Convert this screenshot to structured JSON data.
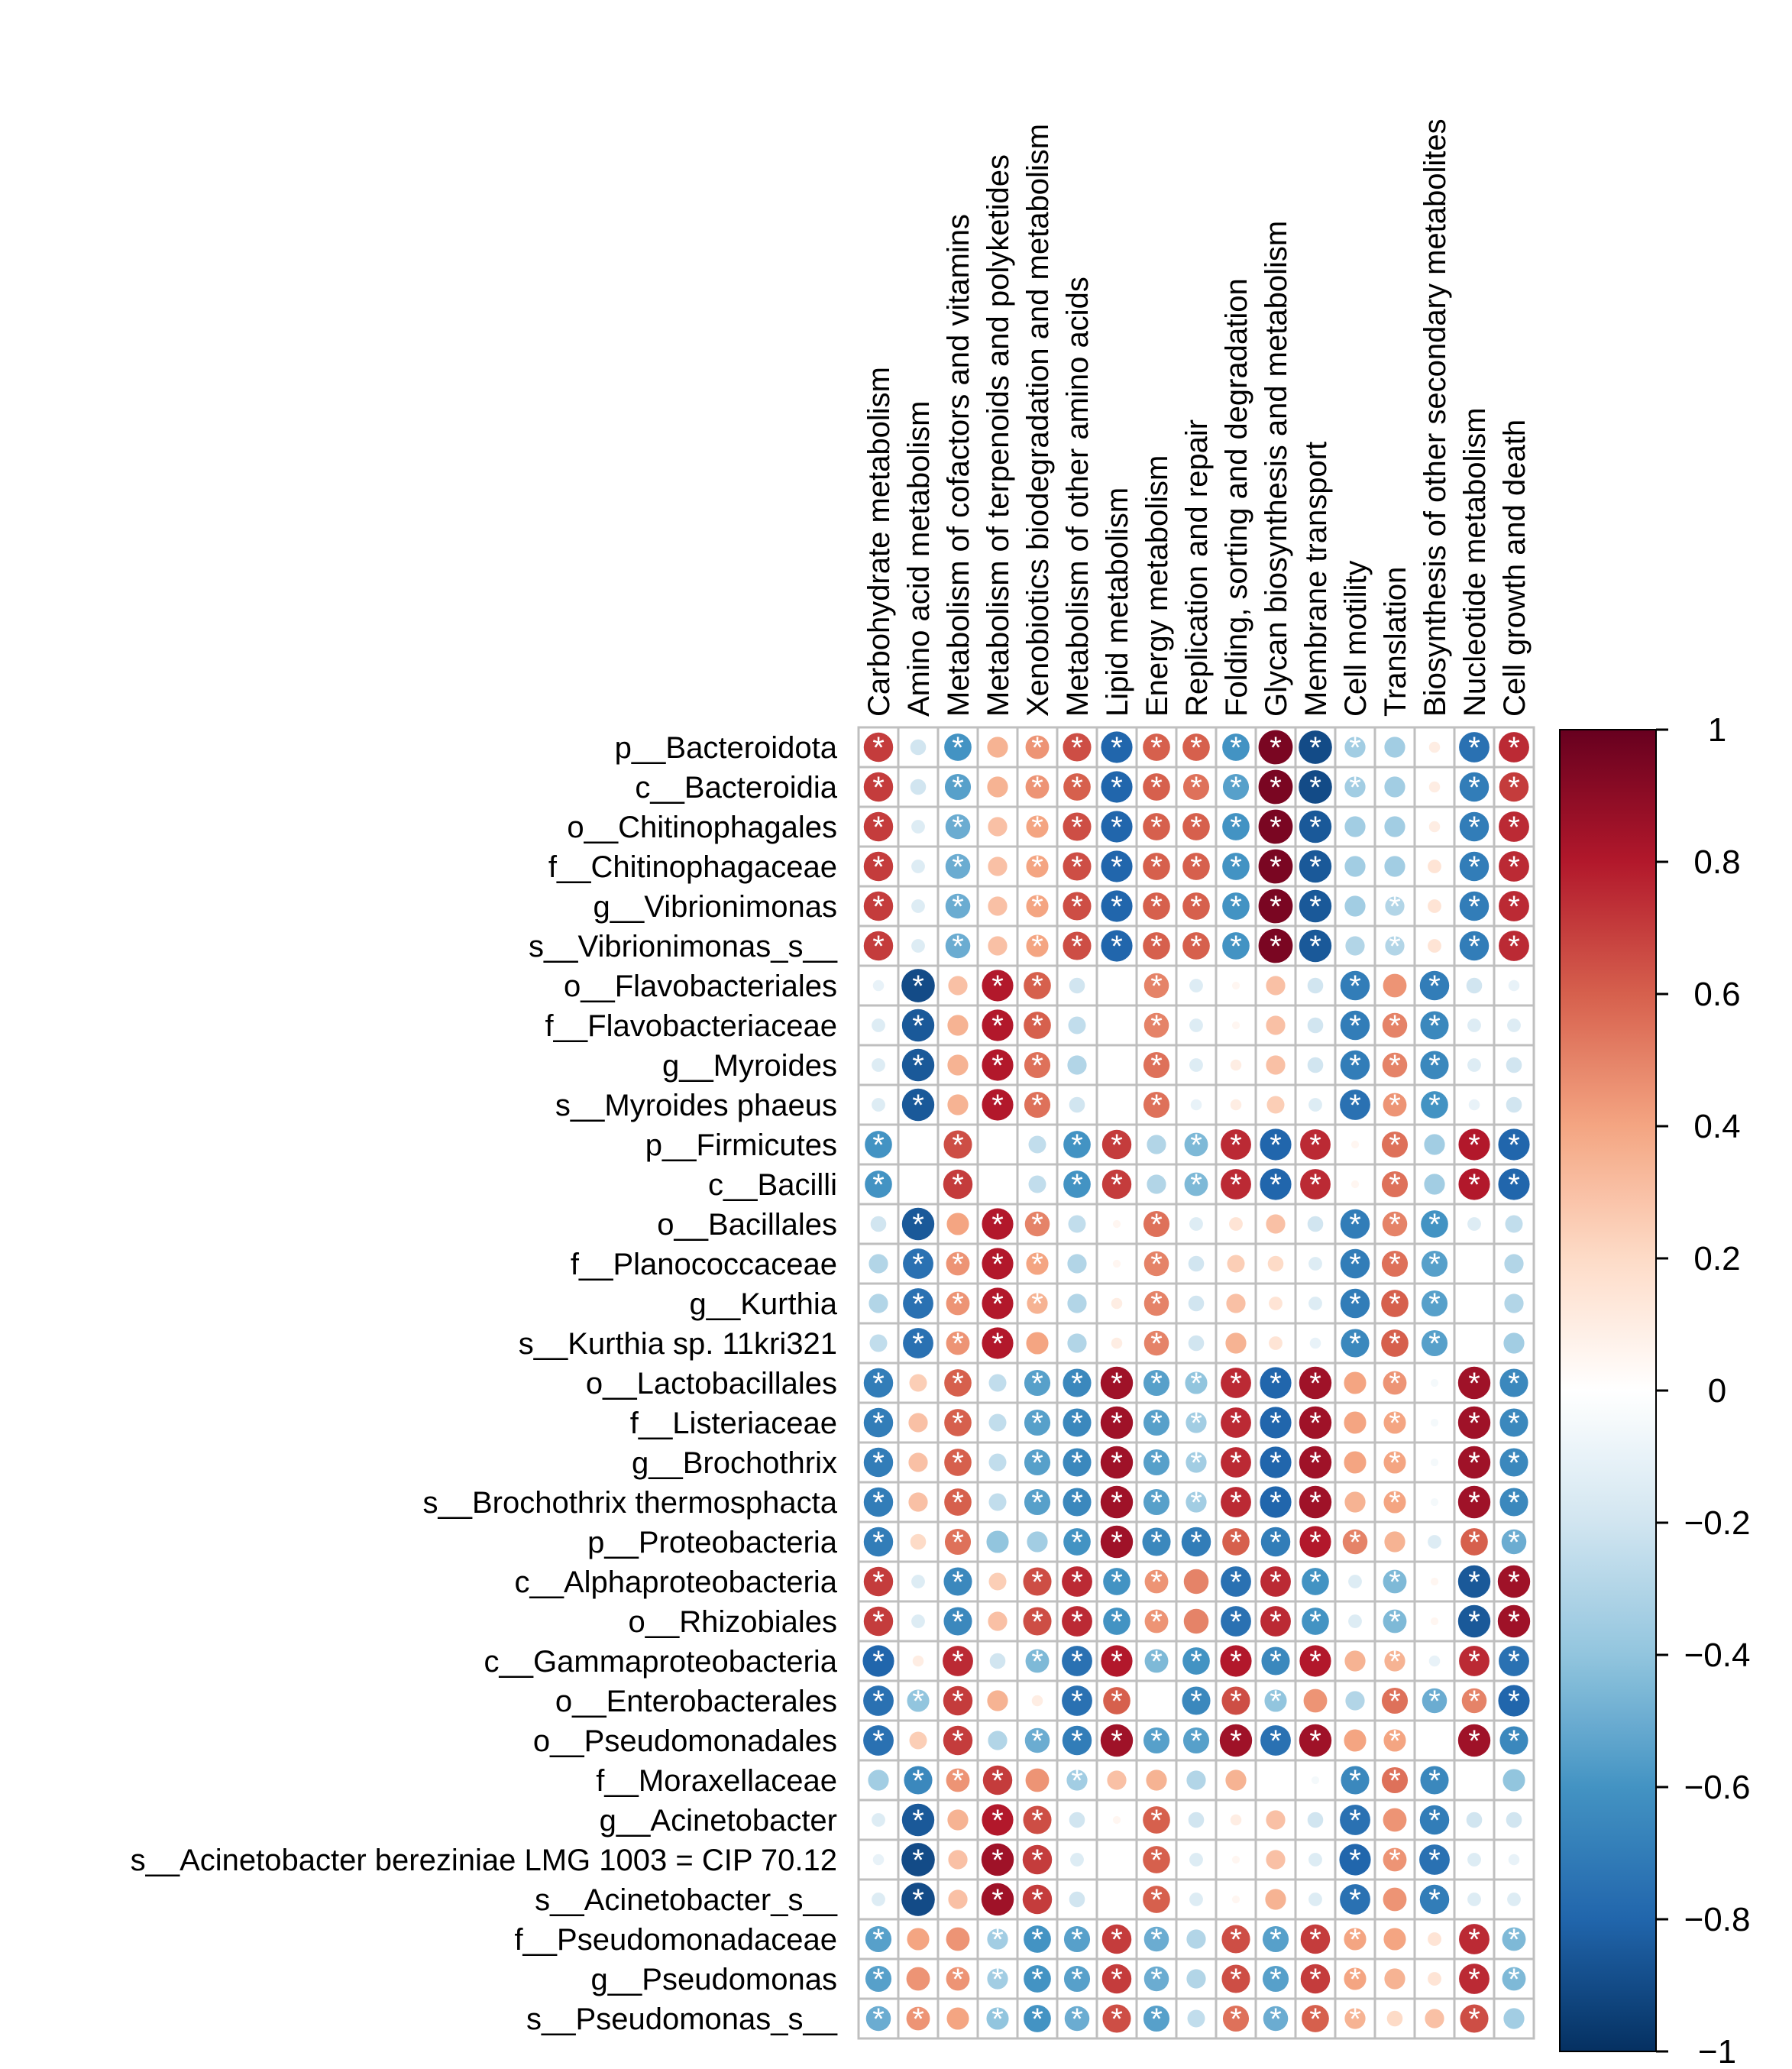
{
  "chart_data": {
    "type": "heatmap",
    "style": "corrplot-circle",
    "title": "",
    "significance_marker": "*",
    "columns": [
      "Carbohydrate metabolism",
      "Amino acid metabolism",
      "Metabolism of cofactors and vitamins",
      "Metabolism of terpenoids and polyketides",
      "Xenobiotics biodegradation and metabolism",
      "Metabolism of other amino acids",
      "Lipid metabolism",
      "Energy metabolism",
      "Replication and repair",
      "Folding, sorting and degradation",
      "Glycan biosynthesis and metabolism",
      "Membrane transport",
      "Cell motility",
      "Translation",
      "Biosynthesis of other secondary metabolites",
      "Nucleotide metabolism",
      "Cell growth and death"
    ],
    "rows": [
      "p__Bacteroidota",
      "c__Bacteroidia",
      "o__Chitinophagales",
      "f__Chitinophagaceae",
      "g__Vibrionimonas",
      "s__Vibrionimonas_s__",
      "o__Flavobacteriales",
      "f__Flavobacteriaceae",
      "g__Myroides",
      "s__Myroides phaeus",
      "p__Firmicutes",
      "c__Bacilli",
      "o__Bacillales",
      "f__Planococcaceae",
      "g__Kurthia",
      "s__Kurthia sp. 11kri321",
      "o__Lactobacillales",
      "f__Listeriaceae",
      "g__Brochothrix",
      "s__Brochothrix thermosphacta",
      "p__Proteobacteria",
      "c__Alphaproteobacteria",
      "o__Rhizobiales",
      "c__Gammaproteobacteria",
      "o__Enterobacterales",
      "o__Pseudomonadales",
      "f__Moraxellaceae",
      "g__Acinetobacter",
      "s__Acinetobacter bereziniae LMG 1003 = CIP 70.12",
      "s__Acinetobacter_s__",
      "f__Pseudomonadaceae",
      "g__Pseudomonas",
      "s__Pseudomonas_s__"
    ],
    "values": [
      [
        0.7,
        -0.2,
        -0.6,
        0.35,
        0.45,
        0.65,
        -0.8,
        0.6,
        0.6,
        -0.6,
        0.95,
        -0.9,
        -0.35,
        -0.35,
        0.1,
        -0.75,
        0.75
      ],
      [
        0.7,
        -0.2,
        -0.55,
        0.35,
        0.45,
        0.6,
        -0.8,
        0.6,
        0.55,
        -0.55,
        0.95,
        -0.9,
        -0.35,
        -0.35,
        0.1,
        -0.7,
        0.7
      ],
      [
        0.7,
        -0.15,
        -0.5,
        0.3,
        0.4,
        0.65,
        -0.8,
        0.6,
        0.6,
        -0.6,
        0.95,
        -0.85,
        -0.35,
        -0.35,
        0.1,
        -0.7,
        0.75
      ],
      [
        0.7,
        -0.15,
        -0.5,
        0.3,
        0.4,
        0.65,
        -0.8,
        0.6,
        0.6,
        -0.6,
        0.95,
        -0.85,
        -0.35,
        -0.35,
        0.15,
        -0.7,
        0.75
      ],
      [
        0.7,
        -0.15,
        -0.5,
        0.3,
        0.4,
        0.65,
        -0.8,
        0.6,
        0.6,
        -0.6,
        0.95,
        -0.85,
        -0.35,
        -0.3,
        0.15,
        -0.7,
        0.75
      ],
      [
        0.7,
        -0.15,
        -0.5,
        0.3,
        0.4,
        0.65,
        -0.8,
        0.6,
        0.6,
        -0.6,
        0.95,
        -0.85,
        -0.3,
        -0.3,
        0.15,
        -0.7,
        0.75
      ],
      [
        -0.1,
        -0.9,
        0.3,
        0.8,
        0.6,
        -0.2,
        0.0,
        0.5,
        -0.15,
        0.05,
        0.3,
        -0.2,
        -0.7,
        0.45,
        -0.7,
        -0.2,
        -0.1
      ],
      [
        -0.15,
        -0.85,
        0.35,
        0.8,
        0.6,
        -0.25,
        0.0,
        0.5,
        -0.15,
        0.05,
        0.3,
        -0.2,
        -0.7,
        0.5,
        -0.65,
        -0.15,
        -0.15
      ],
      [
        -0.15,
        -0.85,
        0.35,
        0.8,
        0.55,
        -0.3,
        0.0,
        0.55,
        -0.15,
        0.1,
        0.3,
        -0.2,
        -0.7,
        0.5,
        -0.65,
        -0.15,
        -0.2
      ],
      [
        -0.15,
        -0.85,
        0.35,
        0.8,
        0.55,
        -0.2,
        0.0,
        0.55,
        -0.1,
        0.1,
        0.25,
        -0.15,
        -0.75,
        0.45,
        -0.6,
        -0.1,
        -0.2
      ],
      [
        -0.6,
        0.0,
        0.65,
        0.0,
        -0.25,
        -0.6,
        0.7,
        -0.3,
        -0.45,
        0.75,
        -0.8,
        0.75,
        0.05,
        0.55,
        -0.35,
        0.8,
        -0.8
      ],
      [
        -0.6,
        0.0,
        0.7,
        0.0,
        -0.25,
        -0.6,
        0.7,
        -0.3,
        -0.45,
        0.75,
        -0.8,
        0.75,
        0.05,
        0.55,
        -0.35,
        0.8,
        -0.8
      ],
      [
        -0.2,
        -0.85,
        0.4,
        0.8,
        0.5,
        -0.25,
        0.05,
        0.55,
        -0.15,
        0.15,
        0.3,
        -0.2,
        -0.7,
        0.5,
        -0.6,
        -0.15,
        -0.25
      ],
      [
        -0.3,
        -0.75,
        0.45,
        0.8,
        0.4,
        -0.3,
        0.05,
        0.5,
        -0.2,
        0.25,
        0.2,
        -0.15,
        -0.7,
        0.55,
        -0.55,
        0.0,
        -0.3
      ],
      [
        -0.3,
        -0.75,
        0.45,
        0.8,
        0.35,
        -0.3,
        0.1,
        0.5,
        -0.2,
        0.3,
        0.15,
        -0.15,
        -0.7,
        0.6,
        -0.55,
        0.0,
        -0.3
      ],
      [
        -0.25,
        -0.75,
        0.45,
        0.8,
        0.4,
        -0.3,
        0.1,
        0.5,
        -0.2,
        0.35,
        0.15,
        -0.1,
        -0.65,
        0.6,
        -0.55,
        0.0,
        -0.35
      ],
      [
        -0.7,
        0.25,
        0.6,
        -0.25,
        -0.55,
        -0.65,
        0.85,
        -0.55,
        -0.4,
        0.75,
        -0.8,
        0.85,
        0.4,
        0.45,
        -0.05,
        0.85,
        -0.65
      ],
      [
        -0.7,
        0.3,
        0.6,
        -0.25,
        -0.55,
        -0.65,
        0.85,
        -0.55,
        -0.35,
        0.75,
        -0.8,
        0.85,
        0.4,
        0.4,
        -0.05,
        0.85,
        -0.65
      ],
      [
        -0.7,
        0.3,
        0.6,
        -0.25,
        -0.55,
        -0.65,
        0.85,
        -0.55,
        -0.35,
        0.75,
        -0.8,
        0.85,
        0.4,
        0.4,
        -0.05,
        0.85,
        -0.65
      ],
      [
        -0.7,
        0.3,
        0.6,
        -0.25,
        -0.55,
        -0.65,
        0.85,
        -0.55,
        -0.35,
        0.75,
        -0.8,
        0.85,
        0.35,
        0.4,
        -0.05,
        0.85,
        -0.65
      ],
      [
        -0.7,
        0.2,
        0.55,
        -0.4,
        -0.35,
        -0.6,
        0.85,
        -0.65,
        -0.7,
        0.6,
        -0.7,
        0.8,
        0.5,
        0.35,
        -0.15,
        0.6,
        -0.5
      ],
      [
        0.7,
        -0.15,
        -0.65,
        0.25,
        0.65,
        0.75,
        -0.6,
        0.45,
        0.5,
        -0.75,
        0.75,
        -0.6,
        -0.15,
        -0.45,
        0.05,
        -0.85,
        0.85
      ],
      [
        0.7,
        -0.15,
        -0.65,
        0.3,
        0.65,
        0.75,
        -0.6,
        0.45,
        0.5,
        -0.75,
        0.75,
        -0.6,
        -0.15,
        -0.45,
        0.05,
        -0.85,
        0.85
      ],
      [
        -0.8,
        0.1,
        0.75,
        -0.2,
        -0.45,
        -0.75,
        0.8,
        -0.45,
        -0.6,
        0.8,
        -0.65,
        0.8,
        0.35,
        0.35,
        -0.1,
        0.75,
        -0.75
      ],
      [
        -0.75,
        -0.4,
        0.7,
        0.35,
        0.1,
        -0.75,
        0.6,
        0.0,
        -0.65,
        0.65,
        -0.4,
        0.45,
        -0.3,
        0.55,
        -0.5,
        0.5,
        -0.8
      ],
      [
        -0.75,
        0.25,
        0.7,
        -0.3,
        -0.5,
        -0.7,
        0.85,
        -0.55,
        -0.55,
        0.85,
        -0.75,
        0.85,
        0.4,
        0.4,
        0.0,
        0.85,
        -0.65
      ],
      [
        -0.35,
        -0.65,
        0.45,
        0.7,
        0.45,
        -0.35,
        0.3,
        0.35,
        -0.3,
        0.35,
        0.0,
        -0.05,
        -0.65,
        0.55,
        -0.65,
        0.0,
        -0.4
      ],
      [
        -0.15,
        -0.85,
        0.35,
        0.8,
        0.65,
        -0.2,
        0.05,
        0.6,
        -0.2,
        0.1,
        0.3,
        -0.2,
        -0.75,
        0.45,
        -0.7,
        -0.2,
        -0.2
      ],
      [
        -0.1,
        -0.9,
        0.3,
        0.85,
        0.7,
        -0.15,
        0.0,
        0.6,
        -0.15,
        0.05,
        0.3,
        -0.15,
        -0.8,
        0.45,
        -0.75,
        -0.15,
        -0.1
      ],
      [
        -0.15,
        -0.9,
        0.3,
        0.85,
        0.7,
        -0.2,
        0.0,
        0.6,
        -0.15,
        0.05,
        0.35,
        -0.15,
        -0.75,
        0.45,
        -0.7,
        -0.15,
        -0.15
      ],
      [
        -0.55,
        0.4,
        0.45,
        -0.35,
        -0.6,
        -0.55,
        0.7,
        -0.5,
        -0.3,
        0.65,
        -0.55,
        0.7,
        0.4,
        0.4,
        0.15,
        0.75,
        -0.45
      ],
      [
        -0.55,
        0.45,
        0.45,
        -0.35,
        -0.6,
        -0.55,
        0.7,
        -0.5,
        -0.3,
        0.65,
        -0.55,
        0.7,
        0.4,
        0.35,
        0.15,
        0.75,
        -0.45
      ],
      [
        -0.5,
        0.45,
        0.4,
        -0.4,
        -0.6,
        -0.5,
        0.65,
        -0.55,
        -0.25,
        0.55,
        -0.5,
        0.6,
        0.35,
        0.2,
        0.3,
        0.65,
        -0.35
      ]
    ],
    "significant": [
      [
        1,
        0,
        1,
        0,
        1,
        1,
        1,
        1,
        1,
        1,
        1,
        1,
        1,
        0,
        0,
        1,
        1
      ],
      [
        1,
        0,
        1,
        0,
        1,
        1,
        1,
        1,
        1,
        1,
        1,
        1,
        1,
        0,
        0,
        1,
        1
      ],
      [
        1,
        0,
        1,
        0,
        1,
        1,
        1,
        1,
        1,
        1,
        1,
        1,
        0,
        0,
        0,
        1,
        1
      ],
      [
        1,
        0,
        1,
        0,
        1,
        1,
        1,
        1,
        1,
        1,
        1,
        1,
        0,
        0,
        0,
        1,
        1
      ],
      [
        1,
        0,
        1,
        0,
        1,
        1,
        1,
        1,
        1,
        1,
        1,
        1,
        0,
        1,
        0,
        1,
        1
      ],
      [
        1,
        0,
        1,
        0,
        1,
        1,
        1,
        1,
        1,
        1,
        1,
        1,
        0,
        1,
        0,
        1,
        1
      ],
      [
        0,
        1,
        0,
        1,
        1,
        0,
        0,
        1,
        0,
        0,
        0,
        0,
        1,
        0,
        1,
        0,
        0
      ],
      [
        0,
        1,
        0,
        1,
        1,
        0,
        0,
        1,
        0,
        0,
        0,
        0,
        1,
        1,
        1,
        0,
        0
      ],
      [
        0,
        1,
        0,
        1,
        1,
        0,
        0,
        1,
        0,
        0,
        0,
        0,
        1,
        1,
        1,
        0,
        0
      ],
      [
        0,
        1,
        0,
        1,
        1,
        0,
        0,
        1,
        0,
        0,
        0,
        0,
        1,
        1,
        1,
        0,
        0
      ],
      [
        1,
        0,
        1,
        0,
        0,
        1,
        1,
        0,
        1,
        1,
        1,
        1,
        0,
        1,
        0,
        1,
        1
      ],
      [
        1,
        0,
        1,
        0,
        0,
        1,
        1,
        0,
        1,
        1,
        1,
        1,
        0,
        1,
        0,
        1,
        1
      ],
      [
        0,
        1,
        0,
        1,
        1,
        0,
        0,
        1,
        0,
        0,
        0,
        0,
        1,
        1,
        1,
        0,
        0
      ],
      [
        0,
        1,
        1,
        1,
        1,
        0,
        0,
        1,
        0,
        0,
        0,
        0,
        1,
        1,
        1,
        0,
        0
      ],
      [
        0,
        1,
        1,
        1,
        1,
        0,
        0,
        1,
        0,
        0,
        0,
        0,
        1,
        1,
        1,
        0,
        0
      ],
      [
        0,
        1,
        1,
        1,
        0,
        0,
        0,
        1,
        0,
        0,
        0,
        0,
        1,
        1,
        1,
        0,
        0
      ],
      [
        1,
        0,
        1,
        0,
        1,
        1,
        1,
        1,
        1,
        1,
        1,
        1,
        0,
        1,
        0,
        1,
        1
      ],
      [
        1,
        0,
        1,
        0,
        1,
        1,
        1,
        1,
        1,
        1,
        1,
        1,
        0,
        1,
        0,
        1,
        1
      ],
      [
        1,
        0,
        1,
        0,
        1,
        1,
        1,
        1,
        1,
        1,
        1,
        1,
        0,
        1,
        0,
        1,
        1
      ],
      [
        1,
        0,
        1,
        0,
        1,
        1,
        1,
        1,
        1,
        1,
        1,
        1,
        0,
        1,
        0,
        1,
        1
      ],
      [
        1,
        0,
        1,
        0,
        0,
        1,
        1,
        1,
        1,
        1,
        1,
        1,
        1,
        0,
        0,
        1,
        1
      ],
      [
        1,
        0,
        1,
        0,
        1,
        1,
        1,
        1,
        0,
        1,
        1,
        1,
        0,
        1,
        0,
        1,
        1
      ],
      [
        1,
        0,
        1,
        0,
        1,
        1,
        1,
        1,
        0,
        1,
        1,
        1,
        0,
        1,
        0,
        1,
        1
      ],
      [
        1,
        0,
        1,
        0,
        1,
        1,
        1,
        1,
        1,
        1,
        1,
        1,
        0,
        1,
        0,
        1,
        1
      ],
      [
        1,
        1,
        1,
        0,
        0,
        1,
        1,
        0,
        1,
        1,
        1,
        0,
        0,
        1,
        1,
        1,
        1
      ],
      [
        1,
        0,
        1,
        0,
        1,
        1,
        1,
        1,
        1,
        1,
        1,
        1,
        0,
        1,
        0,
        1,
        1
      ],
      [
        0,
        1,
        1,
        1,
        0,
        1,
        0,
        0,
        0,
        0,
        0,
        0,
        1,
        1,
        1,
        0,
        0
      ],
      [
        0,
        1,
        0,
        1,
        1,
        0,
        0,
        1,
        0,
        0,
        0,
        0,
        1,
        0,
        1,
        0,
        0
      ],
      [
        0,
        1,
        0,
        1,
        1,
        0,
        0,
        1,
        0,
        0,
        0,
        0,
        1,
        1,
        1,
        0,
        0
      ],
      [
        0,
        1,
        0,
        1,
        1,
        0,
        0,
        1,
        0,
        0,
        0,
        0,
        1,
        0,
        1,
        0,
        0
      ],
      [
        1,
        0,
        0,
        1,
        1,
        1,
        1,
        1,
        0,
        1,
        1,
        1,
        1,
        0,
        0,
        1,
        1
      ],
      [
        1,
        0,
        1,
        1,
        1,
        1,
        1,
        1,
        0,
        1,
        1,
        1,
        1,
        0,
        0,
        1,
        1
      ],
      [
        1,
        1,
        0,
        1,
        1,
        1,
        1,
        1,
        0,
        1,
        1,
        1,
        1,
        0,
        0,
        1,
        0
      ]
    ],
    "colorbar": {
      "range": [
        -1,
        1
      ],
      "ticks": [
        1,
        0.8,
        0.6,
        0.4,
        0.2,
        0,
        -0.2,
        -0.4,
        -0.6,
        -0.8,
        -1
      ],
      "tick_labels": [
        "1",
        "0.8",
        "0.6",
        "0.4",
        "0.2",
        "0",
        "−0.2",
        "−0.4",
        "−0.6",
        "−0.8",
        "−1"
      ],
      "position": "right"
    },
    "colors": {
      "neg_end": "#053061",
      "pos_end": "#67001f",
      "grid": "#bfbfbf"
    }
  }
}
